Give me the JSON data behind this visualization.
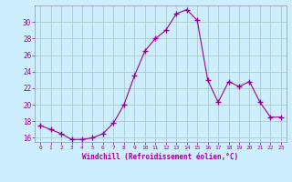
{
  "x": [
    0,
    1,
    2,
    3,
    4,
    5,
    6,
    7,
    8,
    9,
    10,
    11,
    12,
    13,
    14,
    15,
    16,
    17,
    18,
    19,
    20,
    21,
    22,
    23
  ],
  "y": [
    17.5,
    17.0,
    16.5,
    15.8,
    15.8,
    16.0,
    16.5,
    17.8,
    20.0,
    23.5,
    26.5,
    28.0,
    29.0,
    31.0,
    31.5,
    30.2,
    23.0,
    20.3,
    22.8,
    22.2,
    22.8,
    20.3,
    18.5,
    18.5
  ],
  "line_color": "#990099",
  "marker": "+",
  "marker_size": 4,
  "bg_color": "#cceeff",
  "grid_color": "#aacccc",
  "xlabel": "Windchill (Refroidissement éolien,°C)",
  "xlabel_color": "#990099",
  "tick_color": "#990099",
  "ylim": [
    15.5,
    32.0
  ],
  "xlim": [
    -0.5,
    23.5
  ],
  "yticks": [
    16,
    18,
    20,
    22,
    24,
    26,
    28,
    30
  ],
  "xticks": [
    0,
    1,
    2,
    3,
    4,
    5,
    6,
    7,
    8,
    9,
    10,
    11,
    12,
    13,
    14,
    15,
    16,
    17,
    18,
    19,
    20,
    21,
    22,
    23
  ]
}
